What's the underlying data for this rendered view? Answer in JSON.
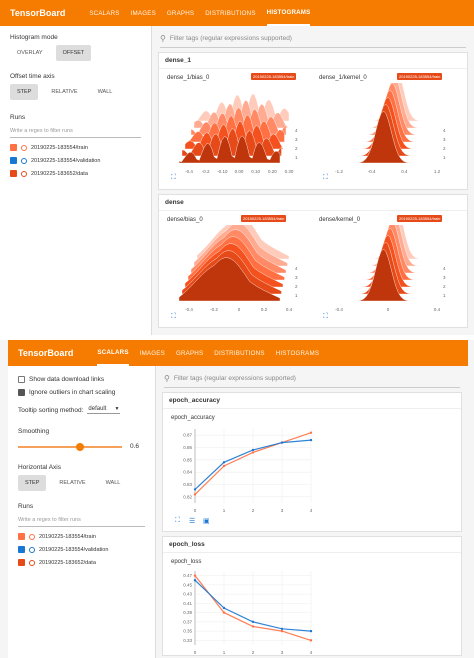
{
  "top_app": {
    "title": "TensorBoard",
    "tabs": [
      "SCALARS",
      "IMAGES",
      "GRAPHS",
      "DISTRIBUTIONS",
      "HISTOGRAMS"
    ],
    "active_tab": "HISTOGRAMS",
    "sidebar": {
      "hist_mode_label": "Histogram mode",
      "hist_modes": [
        "OVERLAY",
        "OFFSET"
      ],
      "offset_axis_label": "Offset time axis",
      "offset_modes": [
        "STEP",
        "RELATIVE",
        "WALL"
      ],
      "runs_label": "Runs",
      "runs_placeholder": "Write a regex to filter runs",
      "runs": [
        "20190225-183554/train",
        "20190225-183554/validation",
        "20190225-183652/data"
      ]
    },
    "filter_placeholder": "Filter tags (regular expressions supported)",
    "groups": [
      {
        "name": "dense_1",
        "charts": [
          {
            "title": "dense_1/bias_0",
            "run_tag": "20190225-183554/train",
            "ticks": [
              "-0.4",
              "-0.2",
              "-0.10",
              "0.00",
              "0.10",
              "0.20",
              "0.30"
            ]
          },
          {
            "title": "dense_1/kernel_0",
            "run_tag": "20190225-183554/train",
            "ticks": [
              "-1.2",
              "-0.4",
              "0.4",
              "1.2"
            ]
          }
        ]
      },
      {
        "name": "dense",
        "charts": [
          {
            "title": "dense/bias_0",
            "run_tag": "20190225-183554/train",
            "ticks": [
              "-0.4",
              "-0.2",
              "0",
              "0.2",
              "0.4"
            ]
          },
          {
            "title": "dense/kernel_0",
            "run_tag": "20190225-183554/train",
            "ticks": [
              "-0.4",
              "0",
              "0.4"
            ]
          }
        ]
      }
    ],
    "step_ticks": [
      "1",
      "2",
      "3",
      "4"
    ]
  },
  "bottom_app": {
    "title": "TensorBoard",
    "tabs": [
      "SCALARS",
      "IMAGES",
      "GRAPHS",
      "DISTRIBUTIONS",
      "HISTOGRAMS"
    ],
    "active_tab": "SCALARS",
    "sidebar": {
      "show_download": "Show data download links",
      "ignore_outliers": "Ignore outliers in chart scaling",
      "tooltip_label": "Tooltip sorting method:",
      "tooltip_value": "default",
      "smoothing_label": "Smoothing",
      "smoothing_value": "0.6",
      "smoothing_fraction": 0.6,
      "hax_label": "Horizontal Axis",
      "hax_modes": [
        "STEP",
        "RELATIVE",
        "WALL"
      ],
      "runs_label": "Runs",
      "runs_placeholder": "Write a regex to filter runs",
      "runs": [
        "20190225-183554/train",
        "20190225-183554/validation",
        "20190225-183652/data"
      ]
    },
    "filter_placeholder": "Filter tags (regular expressions supported)",
    "cards": [
      {
        "name": "epoch_accuracy",
        "chart_title": "epoch_accuracy",
        "yticks": [
          "0.82",
          "0.83",
          "0.84",
          "0.85",
          "0.86",
          "0.87"
        ],
        "xticks": [
          "0",
          "1",
          "2",
          "3",
          "4"
        ]
      },
      {
        "name": "epoch_loss",
        "chart_title": "epoch_loss",
        "yticks": [
          "0.47",
          "0.45",
          "0.43",
          "0.41",
          "0.39",
          "0.37",
          "0.35",
          "0.33"
        ],
        "xticks": [
          "0",
          "1",
          "2",
          "3",
          "4"
        ]
      }
    ]
  },
  "colors": {
    "orange": "#f57c00",
    "train": "#ff7043",
    "validation": "#1976d2",
    "data": "#e64a19"
  },
  "chart_data": [
    {
      "type": "line",
      "title": "epoch_accuracy",
      "x": [
        0,
        1,
        2,
        3,
        4
      ],
      "series": [
        {
          "name": "20190225-183554/train",
          "values": [
            0.822,
            0.845,
            0.856,
            0.864,
            0.872
          ]
        },
        {
          "name": "20190225-183554/validation",
          "values": [
            0.826,
            0.848,
            0.858,
            0.864,
            0.866
          ]
        }
      ],
      "ylim": [
        0.815,
        0.875
      ]
    },
    {
      "type": "line",
      "title": "epoch_loss",
      "x": [
        0,
        1,
        2,
        3,
        4
      ],
      "series": [
        {
          "name": "20190225-183554/train",
          "values": [
            0.47,
            0.39,
            0.36,
            0.35,
            0.33
          ]
        },
        {
          "name": "20190225-183554/validation",
          "values": [
            0.46,
            0.4,
            0.37,
            0.355,
            0.35
          ]
        }
      ],
      "ylim": [
        0.32,
        0.48
      ]
    }
  ]
}
